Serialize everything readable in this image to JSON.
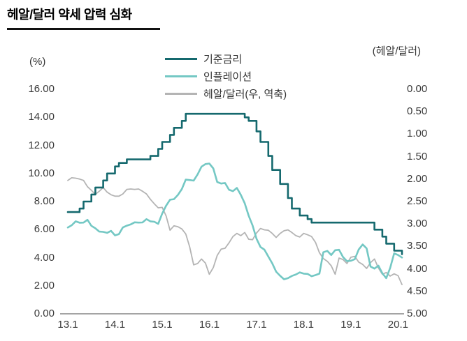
{
  "title": "헤알/달러 약세 압력 심화",
  "chart_data": {
    "type": "line",
    "title": "헤알/달러 약세 압력 심화",
    "grid": false,
    "legend_position": "top-center",
    "x_start": "2013-01",
    "x_frequency": "monthly",
    "x_tick_labels": [
      "13.1",
      "14.1",
      "15.1",
      "16.1",
      "17.1",
      "18.1",
      "19.1",
      "20.1"
    ],
    "left_axis": {
      "label": "(%)",
      "min": 0,
      "max": 16,
      "tick_labels": [
        "16.00",
        "14.00",
        "12.00",
        "10.00",
        "8.00",
        "6.00",
        "4.00",
        "2.00",
        "0.00"
      ]
    },
    "right_axis": {
      "label": "(헤알/달러)",
      "min": 0,
      "max": 5,
      "inverted": true,
      "tick_labels": [
        "0.00",
        "0.50",
        "1.00",
        "1.50",
        "2.00",
        "2.50",
        "3.00",
        "3.50",
        "4.00",
        "4.50",
        "5.00"
      ]
    },
    "series": [
      {
        "id": "base-rate",
        "name": "기준금리",
        "axis": "left",
        "style": "step",
        "color": "#15696e",
        "values": [
          7.25,
          7.25,
          7.25,
          7.5,
          8.0,
          8.0,
          8.5,
          9.0,
          9.0,
          9.5,
          10.0,
          10.0,
          10.5,
          10.75,
          10.75,
          11.0,
          11.0,
          11.0,
          11.0,
          11.0,
          11.0,
          11.25,
          11.25,
          11.75,
          12.25,
          12.25,
          12.75,
          13.25,
          13.25,
          13.75,
          14.25,
          14.25,
          14.25,
          14.25,
          14.25,
          14.25,
          14.25,
          14.25,
          14.25,
          14.25,
          14.25,
          14.25,
          14.25,
          14.25,
          14.25,
          14.0,
          13.75,
          13.75,
          13.0,
          12.25,
          12.25,
          11.25,
          10.25,
          10.25,
          9.25,
          9.25,
          8.25,
          7.5,
          7.5,
          7.0,
          7.0,
          6.75,
          6.5,
          6.5,
          6.5,
          6.5,
          6.5,
          6.5,
          6.5,
          6.5,
          6.5,
          6.5,
          6.5,
          6.5,
          6.5,
          6.5,
          6.5,
          6.5,
          6.0,
          6.0,
          5.5,
          5.0,
          5.0,
          4.5,
          4.5,
          4.25
        ]
      },
      {
        "id": "inflation",
        "name": "인플레이션",
        "axis": "left",
        "style": "line",
        "color": "#74c8c4",
        "values": [
          6.15,
          6.31,
          6.59,
          6.49,
          6.5,
          6.7,
          6.27,
          6.09,
          5.86,
          5.84,
          5.77,
          5.91,
          5.59,
          5.68,
          6.15,
          6.28,
          6.37,
          6.52,
          6.5,
          6.51,
          6.75,
          6.59,
          6.56,
          6.41,
          7.14,
          7.7,
          8.13,
          8.17,
          8.47,
          8.89,
          9.56,
          9.53,
          9.49,
          9.93,
          10.48,
          10.67,
          10.71,
          10.36,
          9.39,
          9.28,
          9.32,
          8.84,
          8.74,
          8.97,
          8.48,
          7.87,
          6.99,
          6.29,
          5.35,
          4.76,
          4.57,
          4.08,
          3.6,
          3.0,
          2.71,
          2.46,
          2.54,
          2.7,
          2.8,
          2.95,
          2.86,
          2.84,
          2.68,
          2.76,
          2.86,
          4.39,
          4.48,
          4.19,
          4.53,
          4.56,
          4.05,
          3.75,
          3.78,
          3.89,
          4.58,
          4.94,
          4.66,
          3.37,
          3.22,
          3.43,
          2.89,
          2.54,
          3.27,
          4.31,
          4.19,
          4.01
        ]
      },
      {
        "id": "brl-usd",
        "name": "헤알/달러(우, 역축)",
        "axis": "right",
        "style": "line",
        "color": "#b4b4b4",
        "values": [
          2.03,
          1.97,
          1.98,
          2.0,
          2.03,
          2.17,
          2.25,
          2.34,
          2.27,
          2.19,
          2.29,
          2.35,
          2.38,
          2.38,
          2.33,
          2.23,
          2.22,
          2.23,
          2.22,
          2.27,
          2.33,
          2.45,
          2.55,
          2.64,
          2.63,
          2.82,
          3.14,
          3.04,
          3.06,
          3.11,
          3.22,
          3.51,
          3.91,
          3.88,
          3.78,
          3.87,
          4.12,
          3.97,
          3.7,
          3.56,
          3.54,
          3.42,
          3.28,
          3.21,
          3.26,
          3.19,
          3.34,
          3.35,
          3.2,
          3.1,
          3.13,
          3.14,
          3.21,
          3.3,
          3.21,
          3.15,
          3.13,
          3.19,
          3.26,
          3.29,
          3.21,
          3.24,
          3.28,
          3.41,
          3.64,
          3.77,
          3.83,
          3.93,
          4.12,
          3.76,
          3.79,
          3.88,
          3.74,
          3.72,
          3.85,
          3.9,
          3.99,
          3.86,
          3.78,
          3.98,
          4.12,
          4.08,
          4.16,
          4.11,
          4.15,
          4.35
        ]
      }
    ]
  }
}
